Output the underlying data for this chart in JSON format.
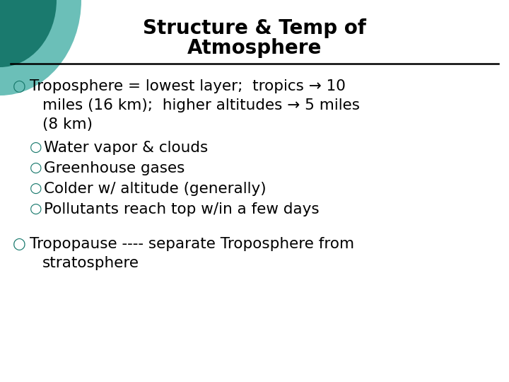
{
  "title_line1": "Structure & Temp of",
  "title_line2": "Atmosphere",
  "title_fontsize": 20,
  "background_color": "#ffffff",
  "text_color": "#000000",
  "bullet_color": "#1a7a6e",
  "line_color": "#000000",
  "bullet_symbol": "○",
  "font_family": "DejaVu Sans",
  "body_fontsize": 15.5,
  "circle_color_outer": "#6bbfb8",
  "circle_color_inner": "#1a7a6e",
  "line1": "Troposphere = lowest layer;  tropics → 10",
  "line2": "miles (16 km);  higher altitudes → 5 miles",
  "line3": "(8 km)",
  "line4": "Water vapor & clouds",
  "line5": "Greenhouse gases",
  "line6": "Colder w/ altitude (generally)",
  "line7": "Pollutants reach top w/in a few days",
  "line8": "Tropopause ---- separate Troposphere from",
  "line9": "stratosphere"
}
